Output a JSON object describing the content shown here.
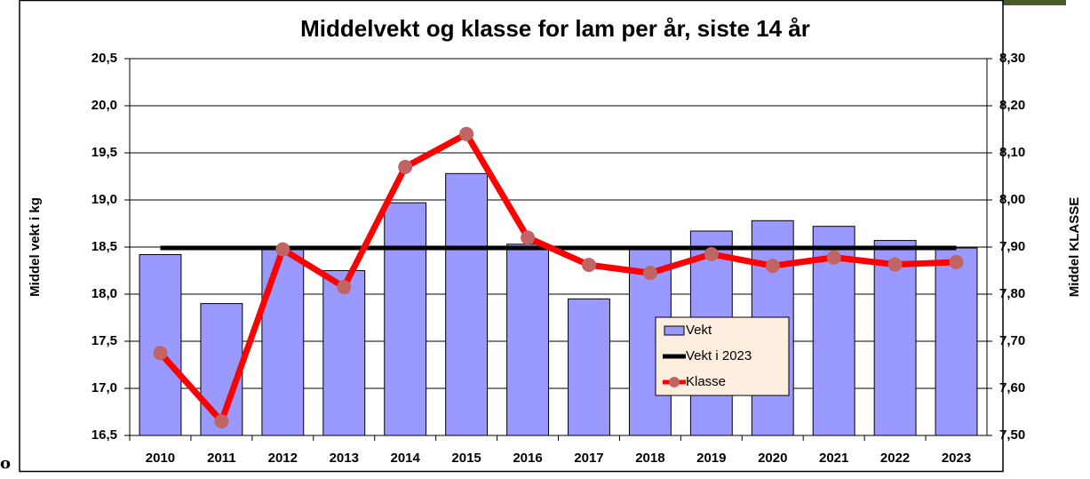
{
  "chart_data": {
    "type": "combo",
    "title": "Middelvekt og klasse for lam per år, siste 14 år",
    "y_label": "Middel vekt i kg",
    "y2_label": "Middel KLASSE",
    "categories": [
      "2010",
      "2011",
      "2012",
      "2013",
      "2014",
      "2015",
      "2016",
      "2017",
      "2018",
      "2019",
      "2020",
      "2021",
      "2022",
      "2023"
    ],
    "series": [
      {
        "name": "Vekt",
        "type": "bar",
        "color": "#9999ff",
        "values": [
          18.42,
          17.9,
          18.5,
          18.25,
          18.97,
          19.28,
          18.53,
          17.95,
          18.5,
          18.67,
          18.78,
          18.72,
          18.57,
          18.49
        ]
      },
      {
        "name": "Vekt i 2023",
        "type": "line",
        "color": "#000000",
        "values": [
          18.49,
          18.49,
          18.49,
          18.49,
          18.49,
          18.49,
          18.49,
          18.49,
          18.49,
          18.49,
          18.49,
          18.49,
          18.49,
          18.49
        ]
      },
      {
        "name": "Klasse",
        "type": "line",
        "axis": "y2",
        "color": "#ff0000",
        "marker_color": "#c06464",
        "values": [
          7.675,
          7.53,
          7.895,
          7.815,
          8.07,
          8.14,
          7.92,
          7.862,
          7.845,
          7.885,
          7.86,
          7.878,
          7.863,
          7.868
        ]
      }
    ],
    "ylim": [
      16.5,
      20.5
    ],
    "yticks": [
      {
        "value": 16.5,
        "label": "16,5"
      },
      {
        "value": 17,
        "label": "17,0"
      },
      {
        "value": 17.5,
        "label": "17,5"
      },
      {
        "value": 18,
        "label": "18,0"
      },
      {
        "value": 18.5,
        "label": "18,5"
      },
      {
        "value": 19,
        "label": "19,0"
      },
      {
        "value": 19.5,
        "label": "19,5"
      },
      {
        "value": 20,
        "label": "20,0"
      },
      {
        "value": 20.5,
        "label": "20,5"
      }
    ],
    "y2lim": [
      7.5,
      8.3
    ],
    "y2ticks": [
      {
        "value": 7.5,
        "label": "7,50"
      },
      {
        "value": 7.6,
        "label": "7,60"
      },
      {
        "value": 7.7,
        "label": "7,70"
      },
      {
        "value": 7.8,
        "label": "7,80"
      },
      {
        "value": 7.9,
        "label": "7,90"
      },
      {
        "value": 8.0,
        "label": "8,00"
      },
      {
        "value": 8.1,
        "label": "8,10"
      },
      {
        "value": 8.2,
        "label": "8,20"
      },
      {
        "value": 8.3,
        "label": "8,30"
      }
    ],
    "grid": true
  },
  "stray_text": "o"
}
